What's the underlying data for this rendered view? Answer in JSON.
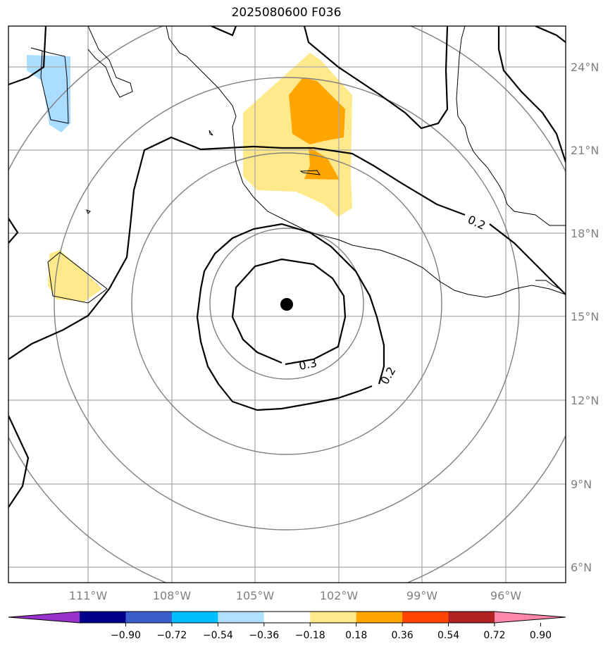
{
  "title": "2025080600 F036",
  "map": {
    "lat_labels": [
      "24°N",
      "21°N",
      "18°N",
      "15°N",
      "12°N",
      "9°N",
      "6°N"
    ],
    "lon_labels": [
      "111°W",
      "108°W",
      "105°W",
      "102°W",
      "99°W",
      "96°W"
    ],
    "contour_labels": [
      "0.2",
      "0.3",
      "0.2"
    ],
    "center_marker": "storm-center",
    "colors": {
      "coast": "#000000",
      "gridline": "#aaaaaa",
      "range_ring": "#808080",
      "fill_light_yellow": "#ffe98a",
      "fill_orange": "#ffa500",
      "fill_light_blue": "#aaddff"
    }
  },
  "colorbar": {
    "ticks": [
      "−0.90",
      "−0.72",
      "−0.54",
      "−0.36",
      "−0.18",
      "0.18",
      "0.36",
      "0.54",
      "0.72",
      "0.90"
    ],
    "colors": [
      "#9932cc",
      "#00008b",
      "#3a5fcd",
      "#00bfff",
      "#b0e0ff",
      "#ffffff",
      "#ffe98a",
      "#ffa500",
      "#ff4500",
      "#b22222",
      "#ff88aa"
    ]
  }
}
